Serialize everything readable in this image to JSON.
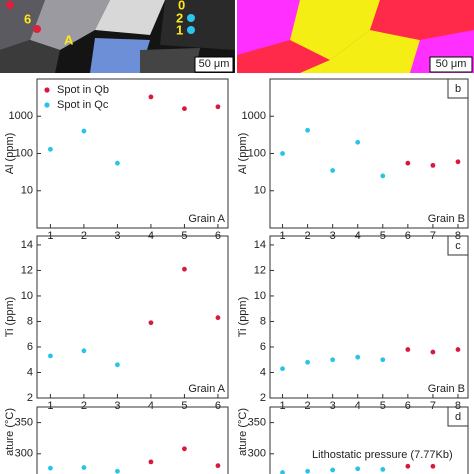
{
  "images": {
    "left": {
      "labels": [
        "6",
        "A",
        "0",
        "2",
        "1"
      ],
      "scale_bar": "50 μm"
    },
    "right": {
      "scale_bar": "50 μm"
    }
  },
  "chart_data": [
    {
      "type": "scatter",
      "ylabel": "Al (ppm)",
      "annotation": "Grain A",
      "legend": "upper left",
      "x": [
        1,
        2,
        3,
        4,
        5,
        6
      ],
      "xlim": [
        0.6,
        6.3
      ],
      "xticks": [
        1,
        2,
        3,
        4,
        5,
        6
      ],
      "yscale": "log",
      "ylim": [
        1,
        10000
      ],
      "yticks": [
        10,
        100,
        1000
      ],
      "series": [
        {
          "name": "Spot in Qb",
          "color": "#d7193f",
          "values": [
            null,
            null,
            null,
            3300,
            1600,
            1800
          ]
        },
        {
          "name": "Spot in Qc",
          "color": "#29c3e8",
          "values": [
            130,
            400,
            55,
            null,
            null,
            null
          ]
        }
      ]
    },
    {
      "type": "scatter",
      "ylabel": "Al (ppm)",
      "annotation": "Grain B",
      "panel_label": "b",
      "x": [
        1,
        2,
        3,
        4,
        5,
        6,
        7,
        8
      ],
      "xlim": [
        0.5,
        8.4
      ],
      "xticks": [
        1,
        2,
        3,
        4,
        5,
        6,
        7,
        8
      ],
      "yscale": "log",
      "ylim": [
        1,
        10000
      ],
      "yticks": [
        10,
        100,
        1000
      ],
      "series": [
        {
          "color": "#d7193f",
          "values": [
            null,
            null,
            null,
            null,
            null,
            55,
            48,
            60
          ]
        },
        {
          "color": "#29c3e8",
          "values": [
            100,
            420,
            35,
            200,
            25,
            null,
            null,
            null
          ]
        }
      ]
    },
    {
      "type": "scatter",
      "ylabel": "Ti (ppm)",
      "annotation": "Grain A",
      "x": [
        1,
        2,
        3,
        4,
        5,
        6
      ],
      "xlim": [
        0.6,
        6.3
      ],
      "xticks": [
        1,
        2,
        3,
        4,
        5,
        6
      ],
      "ylim": [
        2,
        14.7
      ],
      "yticks": [
        2,
        4,
        6,
        8,
        10,
        12,
        14
      ],
      "series": [
        {
          "color": "#d7193f",
          "values": [
            null,
            null,
            null,
            7.9,
            12.1,
            8.3
          ]
        },
        {
          "color": "#29c3e8",
          "values": [
            5.3,
            5.7,
            4.6,
            null,
            null,
            null
          ]
        }
      ]
    },
    {
      "type": "scatter",
      "ylabel": "Ti (ppm)",
      "annotation": "Grain B",
      "panel_label": "c",
      "x": [
        1,
        2,
        3,
        4,
        5,
        6,
        7,
        8
      ],
      "xlim": [
        0.5,
        8.4
      ],
      "xticks": [
        1,
        2,
        3,
        4,
        5,
        6,
        7,
        8
      ],
      "ylim": [
        2,
        14.7
      ],
      "yticks": [
        2,
        4,
        6,
        8,
        10,
        12,
        14
      ],
      "series": [
        {
          "color": "#d7193f",
          "values": [
            null,
            null,
            null,
            null,
            null,
            5.8,
            5.6,
            5.8
          ]
        },
        {
          "color": "#29c3e8",
          "values": [
            4.3,
            4.8,
            5.0,
            5.2,
            5.0,
            null,
            null,
            null
          ]
        }
      ]
    },
    {
      "type": "scatter",
      "ylabel": "ature (°C)",
      "x": [
        1,
        2,
        3,
        4,
        5,
        6
      ],
      "xlim": [
        0.6,
        6.3
      ],
      "ylim": [
        250,
        375
      ],
      "yticks": [
        300,
        350
      ],
      "series": [
        {
          "color": "#d7193f",
          "values": [
            null,
            null,
            null,
            287,
            308,
            281
          ]
        },
        {
          "color": "#29c3e8",
          "values": [
            277,
            278,
            272,
            null,
            null,
            null
          ]
        }
      ]
    },
    {
      "type": "scatter",
      "ylabel": "ature (°C)",
      "annotation": "Lithostatic pressure (7.77Kb)",
      "panel_label": "d",
      "x": [
        1,
        2,
        3,
        4,
        5,
        6,
        7,
        8
      ],
      "xlim": [
        0.5,
        8.4
      ],
      "ylim": [
        250,
        375
      ],
      "yticks": [
        300,
        350
      ],
      "series": [
        {
          "color": "#d7193f",
          "values": [
            null,
            null,
            null,
            null,
            null,
            280,
            280,
            null
          ]
        },
        {
          "color": "#29c3e8",
          "values": [
            270,
            272,
            274,
            276,
            275,
            null,
            null,
            null
          ]
        }
      ]
    }
  ]
}
